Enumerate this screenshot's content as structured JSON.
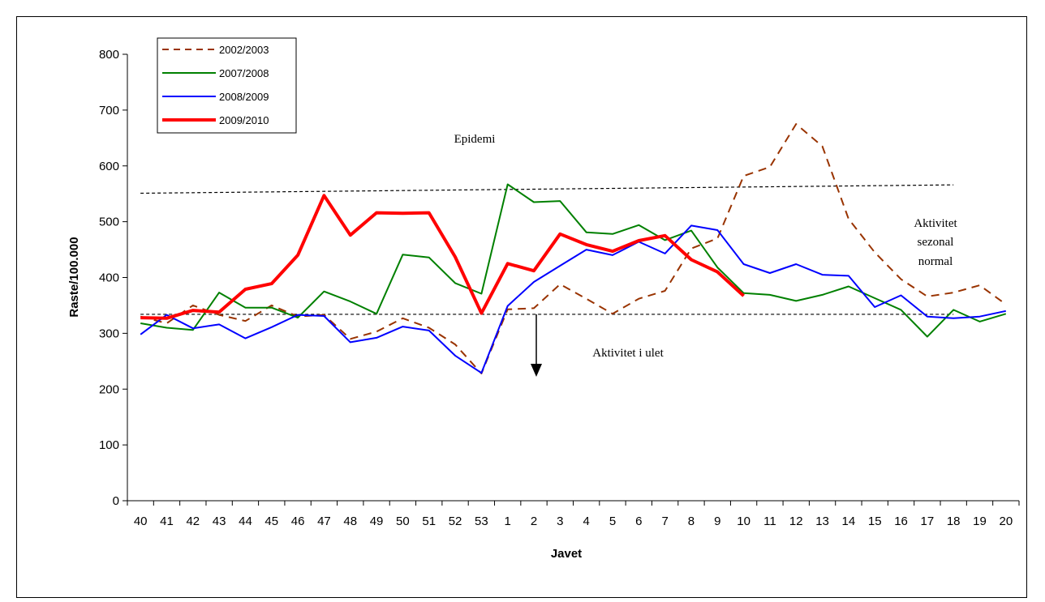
{
  "chart_data": {
    "type": "line",
    "categories": [
      "40",
      "41",
      "42",
      "43",
      "44",
      "45",
      "46",
      "47",
      "48",
      "49",
      "50",
      "51",
      "52",
      "53",
      "1",
      "2",
      "3",
      "4",
      "5",
      "6",
      "7",
      "8",
      "9",
      "10",
      "11",
      "12",
      "13",
      "14",
      "15",
      "16",
      "17",
      "18",
      "19",
      "20"
    ],
    "xlabel": "Javet",
    "ylabel": "Raste/100.000",
    "ylim": [
      0,
      800
    ],
    "yticks": [
      "0",
      "100",
      "200",
      "300",
      "400",
      "500",
      "600",
      "700",
      "800"
    ],
    "grid": false,
    "legend_position": "top-left",
    "series": [
      {
        "name": "2002/2003",
        "color": "#993300",
        "style": "dashed",
        "values": [
          330,
          318,
          350,
          333,
          322,
          350,
          330,
          333,
          290,
          303,
          327,
          310,
          280,
          228,
          343,
          345,
          388,
          362,
          335,
          362,
          376,
          452,
          470,
          582,
          598,
          675,
          635,
          505,
          445,
          397,
          366,
          373,
          386,
          352
        ]
      },
      {
        "name": "2007/2008",
        "color": "#008000",
        "style": "solid",
        "values": [
          318,
          310,
          306,
          373,
          346,
          346,
          328,
          375,
          357,
          335,
          441,
          436,
          390,
          371,
          567,
          535,
          537,
          481,
          478,
          494,
          467,
          484,
          418,
          372,
          369,
          358,
          369,
          384,
          363,
          342,
          294,
          342,
          321,
          335
        ]
      },
      {
        "name": "2008/2009",
        "color": "#0000ff",
        "style": "solid",
        "values": [
          298,
          333,
          309,
          316,
          291,
          311,
          333,
          331,
          284,
          292,
          312,
          305,
          260,
          229,
          349,
          392,
          421,
          450,
          440,
          464,
          443,
          493,
          485,
          424,
          408,
          424,
          405,
          403,
          347,
          368,
          330,
          327,
          330,
          340
        ]
      },
      {
        "name": "2009/2010",
        "color": "#ff0000",
        "style": "thick",
        "values": [
          328,
          327,
          341,
          338,
          379,
          389,
          440,
          547,
          476,
          516,
          515,
          516,
          437,
          336,
          425,
          412,
          478,
          459,
          447,
          466,
          475,
          432,
          410,
          367,
          null,
          null,
          null,
          null,
          null,
          null,
          null,
          null,
          null,
          null
        ]
      }
    ],
    "threshold_lines": [
      {
        "label": "Epidemi",
        "from": [
          40,
          551
        ],
        "to": [
          18,
          566
        ]
      },
      {
        "label": "Aktivitet i ulet",
        "from": [
          40,
          334
        ],
        "to": [
          18,
          334
        ]
      }
    ],
    "annotations": {
      "epidemi": "Epidemi",
      "seasonal_line1": "Aktivitet",
      "seasonal_line2": "sezonal",
      "seasonal_line3": "normal",
      "low": "Aktivitet i ulet"
    }
  }
}
